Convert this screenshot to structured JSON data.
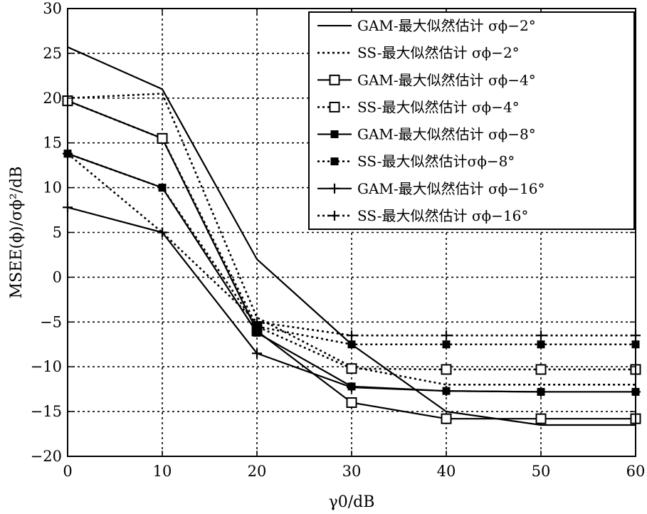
{
  "chart_data": {
    "type": "line",
    "xlabel": "γ0/dB",
    "ylabel": "MSEE(ϕ)/σϕ²/dB",
    "x": [
      0,
      10,
      20,
      30,
      40,
      50,
      60
    ],
    "xlim": [
      0,
      60
    ],
    "ylim": [
      -20,
      30
    ],
    "xticks": [
      "0",
      "10",
      "20",
      "30",
      "40",
      "50",
      "60"
    ],
    "yticks": [
      "30",
      "25",
      "20",
      "15",
      "10",
      "5",
      "0",
      "−5",
      "−10",
      "−15",
      "−20"
    ],
    "grid": true,
    "legend_position": "top-right",
    "series": [
      {
        "name": "GAM-最大似然估计 σϕ−2°",
        "style": "solid",
        "marker": "none",
        "values": [
          25.7,
          21,
          2,
          -7.5,
          -15,
          -16.5,
          -16.5
        ]
      },
      {
        "name": "SS-最大似然估计 σϕ−2°",
        "style": "dotted",
        "marker": "none",
        "values": [
          20,
          20.5,
          -4.5,
          -10,
          -12,
          -12,
          -12
        ]
      },
      {
        "name": "GAM-最大似然估计 σϕ−4°",
        "style": "solid",
        "marker": "square",
        "values": [
          19.7,
          15.5,
          -6,
          -14,
          -15.8,
          -15.8,
          -15.8
        ]
      },
      {
        "name": "SS-最大似然估计 σϕ−4°",
        "style": "dotted",
        "marker": "square",
        "values": [
          19.7,
          15.5,
          -5.5,
          -10.2,
          -10.3,
          -10.3,
          -10.3
        ]
      },
      {
        "name": "GAM-最大似然估计 σϕ−8°",
        "style": "solid",
        "marker": "filled-square",
        "values": [
          13.8,
          10,
          -6.2,
          -12.2,
          -12.7,
          -12.8,
          -12.8
        ]
      },
      {
        "name": "SS-最大似然估计σϕ−8°",
        "style": "dotted",
        "marker": "filled-square",
        "values": [
          13.8,
          10,
          -5.5,
          -7.5,
          -7.5,
          -7.5,
          -7.5
        ]
      },
      {
        "name": "GAM-最大似然估计 σϕ−16°",
        "style": "solid",
        "marker": "plus",
        "values": [
          7.8,
          5,
          -8.5,
          -12.3,
          -12.7,
          -12.8,
          -12.8
        ]
      },
      {
        "name": "SS-最大似然估计 σϕ−16°",
        "style": "dotted",
        "marker": "plus",
        "values": [
          13.8,
          5,
          -5,
          -6.5,
          -6.5,
          -6.5,
          -6.5
        ]
      }
    ]
  }
}
